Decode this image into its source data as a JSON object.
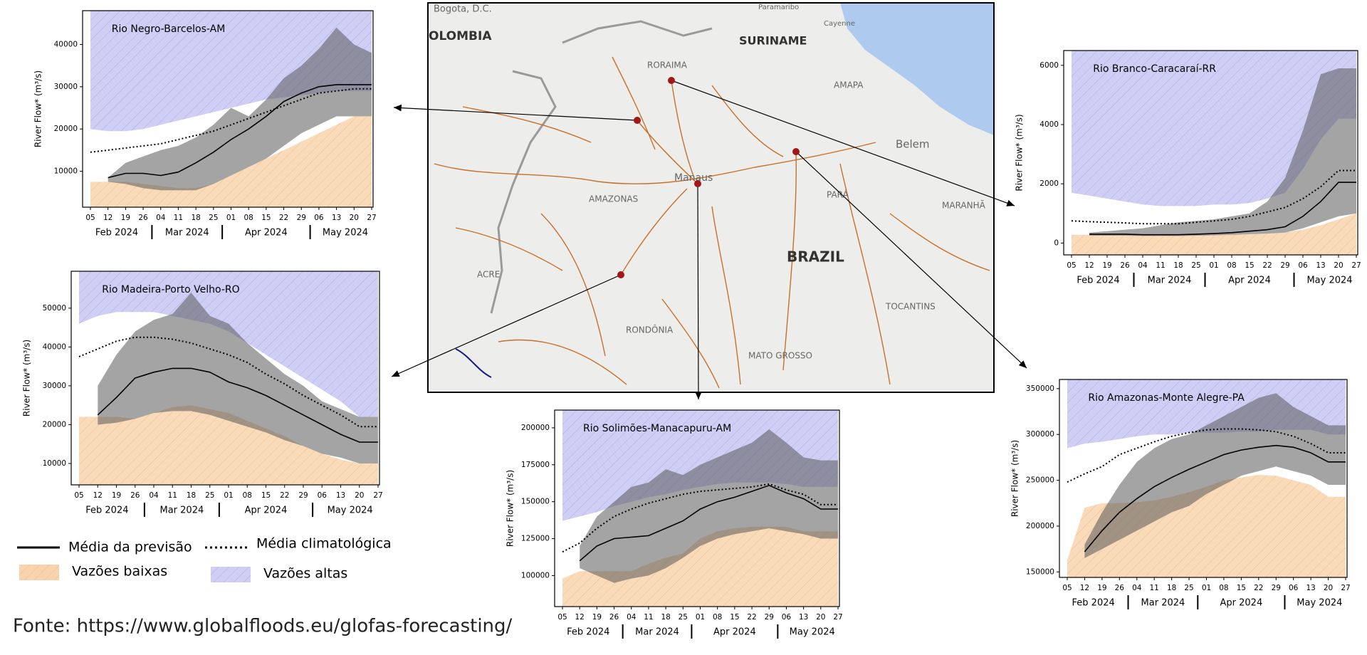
{
  "chart_data": [
    {
      "type": "line",
      "title": "Rio Negro-Barcelos-AM",
      "ylabel": "River Flow* (m³/s)",
      "categories": [
        "05",
        "12",
        "19",
        "26",
        "04",
        "11",
        "18",
        "25",
        "01",
        "08",
        "15",
        "22",
        "29",
        "06",
        "13",
        "20",
        "27"
      ],
      "month_labels": [
        "Feb 2024",
        "Mar 2024",
        "Apr 2024",
        "May 2024"
      ],
      "ylim": [
        1500,
        48000
      ],
      "yticks": [
        10000,
        20000,
        30000,
        40000
      ],
      "series": {
        "forecast_mean": [
          null,
          8500,
          9500,
          9500,
          9000,
          9800,
          12000,
          14500,
          17500,
          20000,
          23000,
          26500,
          28500,
          30000,
          30500,
          30500,
          30500
        ],
        "climatology_mean": [
          14500,
          15000,
          15500,
          16000,
          16500,
          17500,
          18500,
          19500,
          21000,
          22500,
          24000,
          25500,
          27000,
          28500,
          29000,
          29500,
          29500
        ],
        "low_flow": [
          7500,
          7500,
          7500,
          7000,
          6500,
          6000,
          6000,
          7000,
          9000,
          11000,
          13000,
          15000,
          17000,
          19000,
          21000,
          23000,
          23000
        ],
        "high_flow": [
          20000,
          19500,
          19500,
          20000,
          21000,
          22000,
          23000,
          24000,
          25000,
          26000,
          27000,
          27500,
          28000,
          28500,
          29000,
          29000,
          29000
        ],
        "spread_lower": [
          null,
          7500,
          7000,
          6000,
          5500,
          5500,
          5500,
          7000,
          9000,
          11000,
          13000,
          16000,
          19000,
          21000,
          23000,
          23000,
          23000
        ],
        "spread_upper": [
          null,
          8500,
          12000,
          13500,
          15000,
          16000,
          18000,
          21000,
          25000,
          23000,
          27000,
          32000,
          35000,
          39000,
          44000,
          40000,
          38000
        ]
      }
    },
    {
      "type": "line",
      "title": "Rio Branco-Caracaraí-RR",
      "ylabel": "River Flow* (m³/s)",
      "categories": [
        "05",
        "12",
        "19",
        "26",
        "04",
        "11",
        "18",
        "25",
        "01",
        "08",
        "15",
        "22",
        "29",
        "06",
        "13",
        "20",
        "27"
      ],
      "month_labels": [
        "Feb 2024",
        "Mar 2024",
        "Apr 2024",
        "May 2024"
      ],
      "ylim": [
        -400,
        6500
      ],
      "yticks": [
        0,
        2000,
        4000,
        6000
      ],
      "series": {
        "forecast_mean": [
          null,
          300,
          300,
          300,
          280,
          280,
          280,
          300,
          320,
          350,
          400,
          450,
          550,
          900,
          1400,
          2050,
          2050
        ],
        "climatology_mean": [
          750,
          720,
          700,
          680,
          650,
          650,
          650,
          700,
          750,
          800,
          900,
          1050,
          1200,
          1500,
          1900,
          2450,
          2450
        ],
        "low_flow": [
          280,
          280,
          280,
          280,
          280,
          280,
          280,
          280,
          280,
          300,
          300,
          320,
          350,
          450,
          600,
          800,
          1000
        ],
        "high_flow": [
          1700,
          1600,
          1500,
          1400,
          1300,
          1250,
          1250,
          1250,
          1300,
          1300,
          1350,
          1500,
          1700,
          2500,
          3500,
          4200,
          4200
        ],
        "spread_lower": [
          null,
          250,
          250,
          250,
          240,
          240,
          240,
          250,
          260,
          280,
          300,
          320,
          350,
          500,
          700,
          900,
          1000
        ],
        "spread_upper": [
          null,
          350,
          400,
          450,
          500,
          600,
          700,
          750,
          800,
          900,
          1000,
          1400,
          2200,
          3800,
          5700,
          5900,
          5900
        ]
      }
    },
    {
      "type": "line",
      "title": "Rio Madeira-Porto Velho-RO",
      "ylabel": "River Flow* (m³/s)",
      "categories": [
        "05",
        "12",
        "19",
        "26",
        "04",
        "11",
        "18",
        "25",
        "01",
        "08",
        "15",
        "22",
        "29",
        "06",
        "13",
        "20",
        "27"
      ],
      "month_labels": [
        "Feb 2024",
        "Mar 2024",
        "Apr 2024",
        "May 2024"
      ],
      "ylim": [
        4500,
        59500
      ],
      "yticks": [
        10000,
        20000,
        30000,
        40000,
        50000
      ],
      "series": {
        "forecast_mean": [
          null,
          22500,
          27000,
          32000,
          33500,
          34500,
          34500,
          33500,
          31000,
          29500,
          27500,
          25000,
          22500,
          20000,
          17500,
          15500,
          15500
        ],
        "climatology_mean": [
          37500,
          39500,
          41500,
          42500,
          42500,
          42000,
          41000,
          39500,
          38000,
          36000,
          33000,
          30500,
          27500,
          25000,
          22500,
          19500,
          19500
        ],
        "low_flow": [
          22000,
          22000,
          22000,
          21500,
          23000,
          24500,
          25000,
          24000,
          23000,
          21000,
          19000,
          17000,
          14500,
          12500,
          11000,
          10000,
          10000
        ],
        "high_flow": [
          46000,
          48000,
          49000,
          49000,
          49000,
          48000,
          47000,
          46000,
          44000,
          41000,
          38000,
          35000,
          32000,
          29000,
          26000,
          22000,
          22000
        ],
        "spread_lower": [
          null,
          20000,
          20500,
          21500,
          23000,
          23500,
          23500,
          22500,
          21000,
          19500,
          18000,
          16000,
          14500,
          12500,
          11500,
          10000,
          10000
        ],
        "spread_upper": [
          null,
          30000,
          38000,
          44000,
          47000,
          48500,
          54000,
          48000,
          46000,
          41000,
          37000,
          33000,
          30000,
          26000,
          24000,
          22000,
          22000
        ]
      }
    },
    {
      "type": "line",
      "title": "Rio Solimões-Manacapuru-AM",
      "ylabel": "River Flow* (m³/s)",
      "categories": [
        "05",
        "12",
        "19",
        "26",
        "04",
        "11",
        "18",
        "25",
        "01",
        "08",
        "15",
        "22",
        "29",
        "06",
        "13",
        "20",
        "27"
      ],
      "month_labels": [
        "Feb 2024",
        "Mar 2024",
        "Apr 2024",
        "May 2024"
      ],
      "ylim": [
        79000,
        212000
      ],
      "yticks": [
        100000,
        125000,
        150000,
        175000,
        200000
      ],
      "series": {
        "forecast_mean": [
          null,
          110000,
          120000,
          125000,
          126000,
          127000,
          132000,
          137000,
          145000,
          150000,
          153000,
          157000,
          161000,
          156000,
          152000,
          145000,
          145000
        ],
        "climatology_mean": [
          116000,
          122000,
          132000,
          140000,
          145000,
          149000,
          152000,
          155000,
          157000,
          158000,
          159000,
          160000,
          162000,
          158000,
          155000,
          148000,
          148000
        ],
        "low_flow": [
          98000,
          103000,
          103000,
          103000,
          103000,
          108000,
          112000,
          115000,
          125000,
          130000,
          132000,
          133000,
          133000,
          133000,
          130000,
          130000,
          130000
        ],
        "high_flow": [
          137000,
          140000,
          143000,
          147000,
          150000,
          153000,
          155000,
          158000,
          160000,
          162000,
          163000,
          163000,
          163000,
          162000,
          160000,
          160000,
          160000
        ],
        "spread_lower": [
          null,
          105000,
          100000,
          95000,
          98000,
          100000,
          105000,
          112000,
          120000,
          125000,
          128000,
          130000,
          132000,
          130000,
          128000,
          125000,
          125000
        ],
        "spread_upper": [
          null,
          120000,
          140000,
          150000,
          160000,
          163000,
          172000,
          168000,
          175000,
          180000,
          185000,
          190000,
          199000,
          190000,
          180000,
          178000,
          178000
        ]
      }
    },
    {
      "type": "line",
      "title": "Rio Amazonas-Monte Alegre-PA",
      "ylabel": "River Flow* (m³/s)",
      "categories": [
        "05",
        "12",
        "19",
        "26",
        "04",
        "11",
        "18",
        "25",
        "01",
        "08",
        "15",
        "22",
        "29",
        "06",
        "13",
        "20",
        "27"
      ],
      "month_labels": [
        "Feb 2024",
        "Mar 2024",
        "Apr 2024",
        "May 2024"
      ],
      "ylim": [
        144000,
        360000
      ],
      "yticks": [
        150000,
        200000,
        250000,
        300000,
        350000
      ],
      "series": {
        "forecast_mean": [
          null,
          172000,
          195000,
          215000,
          230000,
          243000,
          253000,
          262000,
          270000,
          278000,
          283000,
          286000,
          288000,
          286000,
          280000,
          270000,
          270000
        ],
        "climatology_mean": [
          248000,
          257000,
          265000,
          278000,
          285000,
          292000,
          298000,
          302000,
          305000,
          306000,
          306000,
          305000,
          303000,
          298000,
          290000,
          280000,
          280000
        ],
        "low_flow": [
          163000,
          220000,
          225000,
          225000,
          226000,
          228000,
          232000,
          237000,
          243000,
          250000,
          253000,
          256000,
          255000,
          250000,
          245000,
          232000,
          232000
        ],
        "high_flow": [
          285000,
          290000,
          292000,
          295000,
          298000,
          300000,
          300000,
          302000,
          302000,
          302000,
          303000,
          303000,
          305000,
          305000,
          305000,
          300000,
          300000
        ],
        "spread_lower": [
          null,
          165000,
          175000,
          185000,
          195000,
          205000,
          215000,
          222000,
          235000,
          245000,
          255000,
          260000,
          265000,
          260000,
          255000,
          245000,
          245000
        ],
        "spread_upper": [
          null,
          180000,
          215000,
          245000,
          270000,
          285000,
          295000,
          300000,
          310000,
          320000,
          330000,
          340000,
          345000,
          330000,
          320000,
          310000,
          310000
        ]
      }
    }
  ],
  "spread_color": "#5a5a5a",
  "legend": [
    {
      "label": "Média da previsão",
      "color": "#000000",
      "style": "solid"
    },
    {
      "label": "Média climatológica",
      "color": "#000000",
      "style": "dotted"
    },
    {
      "label": "Vazões baixas",
      "color": "#f8d3ad",
      "style": "area"
    },
    {
      "label": "Vazões altas",
      "color": "#cfcff5",
      "style": "area"
    }
  ],
  "map": {
    "labels": [
      "Bogota, D.C.",
      "OLOMBIA",
      "Paramaribo",
      "SURINAME",
      "Cayenne",
      "RORAIMA",
      "AMAPA",
      "Belem",
      "Manaus",
      "AMAZONAS",
      "PARÁ",
      "MARANHÃ",
      "BRAZIL",
      "ACRE",
      "TOCANTINS",
      "RONDÔNIA",
      "MATO GROSSO"
    ]
  },
  "source": "Fonte: https://www.globalfloods.eu/glofas-forecasting/"
}
